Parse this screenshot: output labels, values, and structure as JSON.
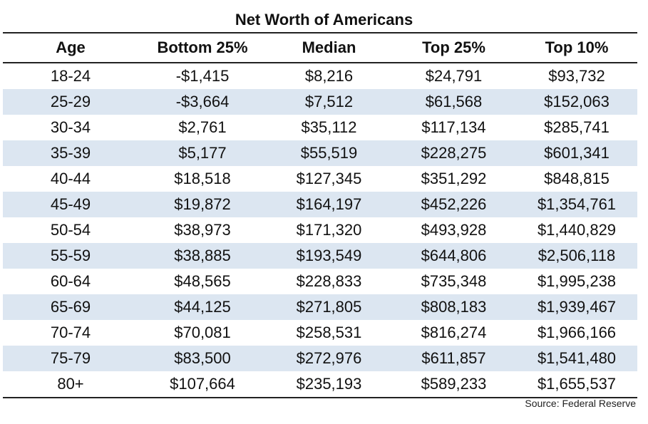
{
  "title": "Net Worth of Americans",
  "headers": [
    "Age",
    "Bottom 25%",
    "Median",
    "Top 25%",
    "Top 10%"
  ],
  "rows": [
    [
      "18-24",
      "-$1,415",
      "$8,216",
      "$24,791",
      "$93,732"
    ],
    [
      "25-29",
      "-$3,664",
      "$7,512",
      "$61,568",
      "$152,063"
    ],
    [
      "30-34",
      "$2,761",
      "$35,112",
      "$117,134",
      "$285,741"
    ],
    [
      "35-39",
      "$5,177",
      "$55,519",
      "$228,275",
      "$601,341"
    ],
    [
      "40-44",
      "$18,518",
      "$127,345",
      "$351,292",
      "$848,815"
    ],
    [
      "45-49",
      "$19,872",
      "$164,197",
      "$452,226",
      "$1,354,761"
    ],
    [
      "50-54",
      "$38,973",
      "$171,320",
      "$493,928",
      "$1,440,829"
    ],
    [
      "55-59",
      "$38,885",
      "$193,549",
      "$644,806",
      "$2,506,118"
    ],
    [
      "60-64",
      "$48,565",
      "$228,833",
      "$735,348",
      "$1,995,238"
    ],
    [
      "65-69",
      "$44,125",
      "$271,805",
      "$808,183",
      "$1,939,467"
    ],
    [
      "70-74",
      "$70,081",
      "$258,531",
      "$816,274",
      "$1,966,166"
    ],
    [
      "75-79",
      "$83,500",
      "$272,976",
      "$611,857",
      "$1,541,480"
    ],
    [
      "80+",
      "$107,664",
      "$235,193",
      "$589,233",
      "$1,655,537"
    ]
  ],
  "source": "Source: Federal Reserve",
  "colors": {
    "alt_row": "#dce6f1",
    "rule": "#222222"
  }
}
